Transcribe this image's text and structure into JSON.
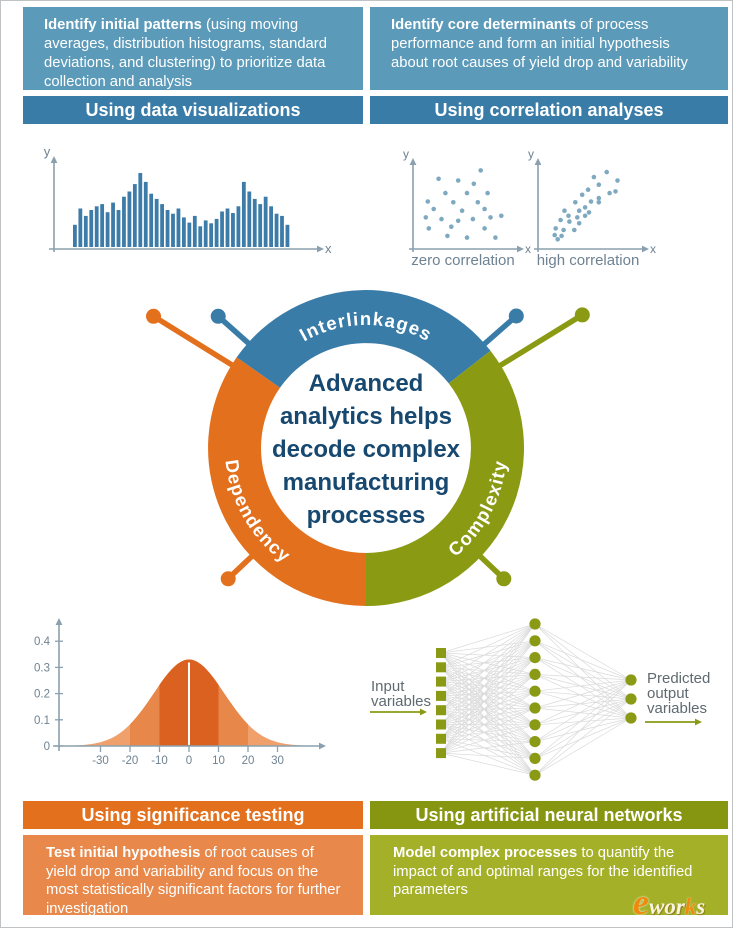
{
  "colors": {
    "blue": "#3a7ca8",
    "light_blue": "#5b9ab9",
    "orange": "#e2701d",
    "light_orange": "#e8894b",
    "olive": "#879610",
    "light_olive": "#a4b128",
    "donut_green": "#8b9a13",
    "navy": "#17486f",
    "axis": "#8aa0ae",
    "muted": "#6e8292",
    "bar": "#3d7ca8",
    "dot": "#7fa9c0",
    "bell_dark": "#da611f",
    "bell_mid": "#e8874a",
    "bell_light": "#efa06b",
    "nn_node": "#8a9a14",
    "nn_line": "#dadada",
    "label_gray": "#5f6a70"
  },
  "top_row": {
    "left": {
      "lead": "Identify initial patterns",
      "body": " (using moving averages, distribution histograms, standard deviations, and clustering) to prioritize data collection and analysis",
      "header": "Using data visualizations"
    },
    "right": {
      "lead": "Identify core determinants",
      "body": " of process performance and form an initial hypothesis about root causes of yield drop and variability",
      "header": "Using correlation analyses"
    }
  },
  "donut": {
    "center_lines": [
      "Advanced",
      "analytics helps",
      "decode complex",
      "manufacturing",
      "processes"
    ],
    "segments": [
      {
        "label": "Interlinkages",
        "color": "#3a7ca8",
        "start": 38,
        "end": 145
      },
      {
        "label": "Dependency",
        "color": "#e2701d",
        "start": 145,
        "end": 270
      },
      {
        "label": "Complexity",
        "color": "#8b9a13",
        "start": 270,
        "end": 398
      }
    ],
    "pins": [
      {
        "color": "#e2701d",
        "angle": 148.2,
        "dot_r": 250
      },
      {
        "color": "#3a7ca8",
        "angle": 138.3,
        "dot_r": 198
      },
      {
        "color": "#3a7ca8",
        "angle": 41.3,
        "dot_r": 200
      },
      {
        "color": "#8b9a13",
        "angle": 31.6,
        "dot_r": 254
      },
      {
        "color": "#e2701d",
        "angle": 223.5,
        "dot_r": 190
      },
      {
        "color": "#8b9a13",
        "angle": 316.5,
        "dot_r": 190
      }
    ]
  },
  "bottom_row": {
    "left": {
      "header": "Using significance testing",
      "lead": "Test initial hypothesis",
      "body": " of root causes of yield drop and variability and focus on the most statistically significant factors for further investigation"
    },
    "right": {
      "header": "Using artificial neural networks",
      "lead": "Model complex processes",
      "body": " to quantify the impact of and optimal ranges for the identified parameters"
    }
  },
  "logo": {
    "e": "e",
    "mid": "wor",
    "k": "k",
    "suffix": "s"
  },
  "chart_data": [
    {
      "type": "bar",
      "title": "bimodal histogram of process data",
      "xlabel": "x",
      "ylabel": "y",
      "values": [
        0.3,
        0.52,
        0.42,
        0.5,
        0.55,
        0.58,
        0.47,
        0.6,
        0.5,
        0.68,
        0.75,
        0.85,
        1.0,
        0.88,
        0.72,
        0.65,
        0.58,
        0.5,
        0.45,
        0.52,
        0.4,
        0.33,
        0.42,
        0.28,
        0.36,
        0.32,
        0.38,
        0.48,
        0.52,
        0.46,
        0.55,
        0.88,
        0.75,
        0.65,
        0.58,
        0.68,
        0.55,
        0.45,
        0.42,
        0.3
      ],
      "ylim": [
        0,
        1
      ],
      "grid": false
    },
    {
      "type": "scatter",
      "title": "zero correlation",
      "xlabel": "x",
      "ylabel": "y",
      "points": [
        [
          65,
          90
        ],
        [
          22,
          80
        ],
        [
          42,
          78
        ],
        [
          58,
          74
        ],
        [
          29,
          63
        ],
        [
          51,
          63
        ],
        [
          72,
          63
        ],
        [
          11,
          53
        ],
        [
          37,
          52
        ],
        [
          62,
          52
        ],
        [
          17,
          44
        ],
        [
          46,
          42
        ],
        [
          69,
          44
        ],
        [
          9,
          34
        ],
        [
          25,
          32
        ],
        [
          42,
          30
        ],
        [
          57,
          32
        ],
        [
          75,
          34
        ],
        [
          86,
          36
        ],
        [
          12,
          21
        ],
        [
          35,
          23
        ],
        [
          69,
          21
        ],
        [
          31,
          12
        ],
        [
          51,
          10
        ],
        [
          80,
          10
        ]
      ],
      "xlim": [
        0,
        100
      ],
      "ylim": [
        0,
        100
      ]
    },
    {
      "type": "scatter",
      "title": "high correlation",
      "xlabel": "x",
      "ylabel": "y",
      "points": [
        [
          66,
          88
        ],
        [
          53,
          82
        ],
        [
          77,
          78
        ],
        [
          58,
          73
        ],
        [
          47,
          67
        ],
        [
          69,
          63
        ],
        [
          75,
          65
        ],
        [
          41,
          61
        ],
        [
          58,
          57
        ],
        [
          50,
          53
        ],
        [
          34,
          52
        ],
        [
          58,
          52
        ],
        [
          44,
          46
        ],
        [
          23,
          42
        ],
        [
          38,
          42
        ],
        [
          48,
          40
        ],
        [
          27,
          36
        ],
        [
          36,
          34
        ],
        [
          44,
          36
        ],
        [
          19,
          31
        ],
        [
          28,
          29
        ],
        [
          38,
          27
        ],
        [
          14,
          21
        ],
        [
          22,
          19
        ],
        [
          33,
          19
        ],
        [
          13,
          13
        ],
        [
          20,
          12
        ],
        [
          16,
          8
        ]
      ],
      "xlim": [
        0,
        100
      ],
      "ylim": [
        0,
        100
      ]
    },
    {
      "type": "area",
      "title": "normal distribution of significance test",
      "x_ticks": [
        -30,
        -20,
        -10,
        0,
        10,
        20,
        30
      ],
      "y_ticks": [
        0,
        0.1,
        0.2,
        0.3,
        0.4
      ],
      "mean": 0,
      "sigma": 12,
      "peak_y": 0.33,
      "xlim": [
        -40,
        40
      ],
      "ylim": [
        0,
        0.45
      ],
      "bands": [
        {
          "from": -40,
          "to": 40,
          "color": "#efa06b"
        },
        {
          "from": -20,
          "to": 20,
          "color": "#e8874a"
        },
        {
          "from": -10,
          "to": 10,
          "color": "#da611f"
        }
      ]
    },
    {
      "type": "diagram",
      "title": "artificial neural network",
      "layers": [
        {
          "shape": "square",
          "count": 8
        },
        {
          "shape": "circle",
          "count": 10
        },
        {
          "shape": "circle",
          "count": 3
        }
      ],
      "input_label_lines": [
        "Input",
        "variables"
      ],
      "output_label_lines": [
        "Predicted",
        "output",
        "variables"
      ]
    }
  ]
}
